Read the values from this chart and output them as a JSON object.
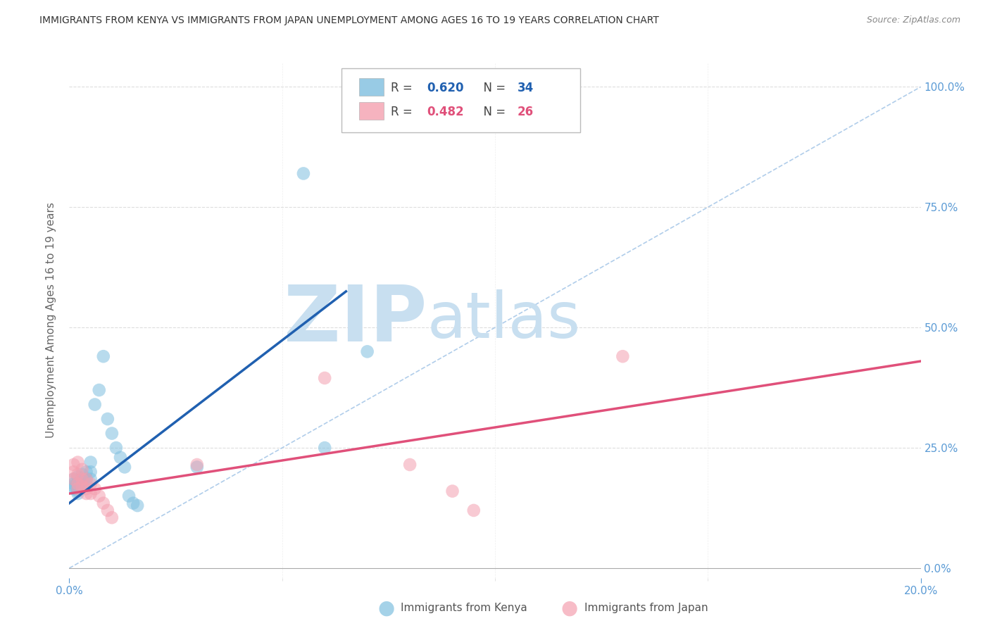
{
  "title": "IMMIGRANTS FROM KENYA VS IMMIGRANTS FROM JAPAN UNEMPLOYMENT AMONG AGES 16 TO 19 YEARS CORRELATION CHART",
  "source": "Source: ZipAtlas.com",
  "ylabel": "Unemployment Among Ages 16 to 19 years",
  "kenya_R": 0.62,
  "kenya_N": 34,
  "japan_R": 0.482,
  "japan_N": 26,
  "xlim": [
    0.0,
    0.2
  ],
  "ylim": [
    -0.02,
    1.05
  ],
  "plot_ylim": [
    0.0,
    1.0
  ],
  "xticks": [
    0.0,
    0.2
  ],
  "xtick_minor": [
    0.05,
    0.1,
    0.15
  ],
  "yticks_right": [
    0.0,
    0.25,
    0.5,
    0.75,
    1.0
  ],
  "kenya_color": "#7fbfdf",
  "japan_color": "#f4a0b0",
  "kenya_line_color": "#2060b0",
  "japan_line_color": "#e0507a",
  "diag_line_color": "#a8c8e8",
  "kenya_scatter": [
    [
      0.001,
      0.185
    ],
    [
      0.001,
      0.175
    ],
    [
      0.001,
      0.17
    ],
    [
      0.001,
      0.165
    ],
    [
      0.002,
      0.19
    ],
    [
      0.002,
      0.175
    ],
    [
      0.002,
      0.165
    ],
    [
      0.002,
      0.16
    ],
    [
      0.002,
      0.155
    ],
    [
      0.003,
      0.195
    ],
    [
      0.003,
      0.185
    ],
    [
      0.003,
      0.175
    ],
    [
      0.003,
      0.17
    ],
    [
      0.004,
      0.2
    ],
    [
      0.004,
      0.185
    ],
    [
      0.004,
      0.175
    ],
    [
      0.005,
      0.22
    ],
    [
      0.005,
      0.2
    ],
    [
      0.005,
      0.185
    ],
    [
      0.006,
      0.34
    ],
    [
      0.007,
      0.37
    ],
    [
      0.008,
      0.44
    ],
    [
      0.009,
      0.31
    ],
    [
      0.01,
      0.28
    ],
    [
      0.011,
      0.25
    ],
    [
      0.012,
      0.23
    ],
    [
      0.013,
      0.21
    ],
    [
      0.014,
      0.15
    ],
    [
      0.015,
      0.135
    ],
    [
      0.016,
      0.13
    ],
    [
      0.03,
      0.21
    ],
    [
      0.055,
      0.82
    ],
    [
      0.06,
      0.25
    ],
    [
      0.07,
      0.45
    ]
  ],
  "japan_scatter": [
    [
      0.001,
      0.215
    ],
    [
      0.001,
      0.2
    ],
    [
      0.001,
      0.185
    ],
    [
      0.002,
      0.22
    ],
    [
      0.002,
      0.195
    ],
    [
      0.002,
      0.175
    ],
    [
      0.002,
      0.165
    ],
    [
      0.003,
      0.205
    ],
    [
      0.003,
      0.185
    ],
    [
      0.003,
      0.17
    ],
    [
      0.004,
      0.185
    ],
    [
      0.004,
      0.165
    ],
    [
      0.004,
      0.155
    ],
    [
      0.005,
      0.175
    ],
    [
      0.005,
      0.155
    ],
    [
      0.006,
      0.165
    ],
    [
      0.007,
      0.15
    ],
    [
      0.008,
      0.135
    ],
    [
      0.009,
      0.12
    ],
    [
      0.01,
      0.105
    ],
    [
      0.03,
      0.215
    ],
    [
      0.06,
      0.395
    ],
    [
      0.08,
      0.215
    ],
    [
      0.09,
      0.16
    ],
    [
      0.095,
      0.12
    ],
    [
      0.13,
      0.44
    ]
  ],
  "kenya_trend_x": [
    0.0,
    0.065
  ],
  "kenya_trend_y": [
    0.135,
    0.575
  ],
  "japan_trend_x": [
    0.0,
    0.2
  ],
  "japan_trend_y": [
    0.155,
    0.43
  ],
  "watermark_zip": "ZIP",
  "watermark_atlas": "atlas",
  "watermark_color": "#c8dff0",
  "background_color": "#ffffff",
  "grid_color": "#dddddd",
  "tick_color": "#5b9bd5",
  "axis_label_color": "#666666",
  "title_color": "#333333",
  "legend_r_color": "#444444",
  "legend_n_color": "#444444",
  "legend_val_color_kenya": "#2060b0",
  "legend_val_color_japan": "#e0507a"
}
